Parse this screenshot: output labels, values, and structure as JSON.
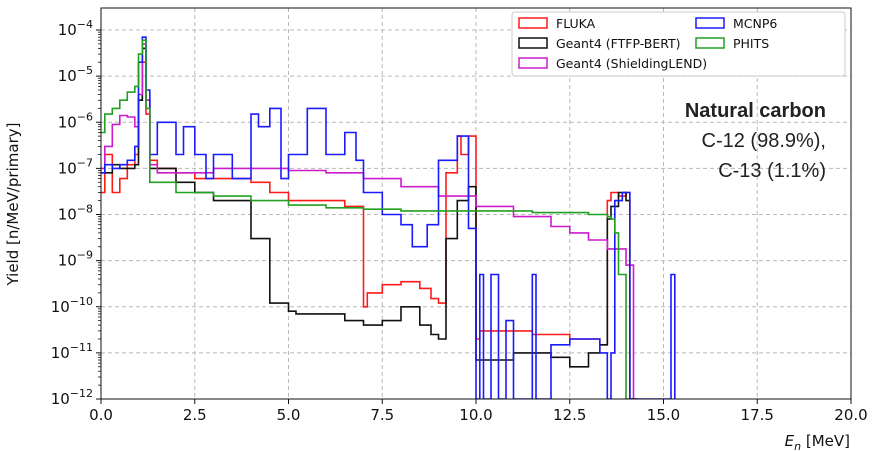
{
  "chart_data": {
    "type": "line",
    "step": true,
    "xlabel_main": "E",
    "xlabel_sub": "n",
    "xlabel_unit": " [MeV]",
    "ylabel": "Yield [n/MeV/primary]",
    "xlim": [
      0,
      20
    ],
    "ylim": [
      1e-12,
      0.0003
    ],
    "yscale": "log",
    "grid": true,
    "legend_placement": "top-right",
    "xticks": [
      "0.0",
      "2.5",
      "5.0",
      "7.5",
      "10.0",
      "12.5",
      "15.0",
      "17.5",
      "20.0"
    ],
    "yticks": [
      {
        "base": "10",
        "exp": "−12"
      },
      {
        "base": "10",
        "exp": "−11"
      },
      {
        "base": "10",
        "exp": "−10"
      },
      {
        "base": "10",
        "exp": "−9"
      },
      {
        "base": "10",
        "exp": "−8"
      },
      {
        "base": "10",
        "exp": "−7"
      },
      {
        "base": "10",
        "exp": "−6"
      },
      {
        "base": "10",
        "exp": "−5"
      },
      {
        "base": "10",
        "exp": "−4"
      }
    ],
    "annotation": {
      "title": "Natural carbon",
      "line1": "C-12 (98.9%),",
      "line2": "C-13 (1.1%)"
    },
    "series": [
      {
        "name": "FLUKA",
        "color": "#ff1a1a",
        "x": [
          0.0,
          0.1,
          0.3,
          0.5,
          0.7,
          0.9,
          1.0,
          1.1,
          1.2,
          1.3,
          1.5,
          2.0,
          2.5,
          3.0,
          4.0,
          4.5,
          5.0,
          6.0,
          6.5,
          7.0,
          7.1,
          7.5,
          8.0,
          8.5,
          8.8,
          9.0,
          9.2,
          9.5,
          9.6,
          9.8,
          10.0,
          10.1,
          10.5,
          11.0,
          11.5,
          12.0,
          12.5,
          13.0,
          13.3,
          13.5,
          13.6,
          13.8,
          14.0,
          14.1,
          14.3
        ],
        "y": [
          3e-08,
          2e-07,
          3e-08,
          6e-08,
          1.2e-07,
          2e-07,
          3e-06,
          2e-05,
          1.5e-06,
          1.5e-07,
          1e-07,
          8e-08,
          6e-08,
          6e-08,
          5e-08,
          3e-08,
          2e-08,
          2e-08,
          1.5e-08,
          1e-10,
          2e-10,
          3e-10,
          3.5e-10,
          2.5e-10,
          1.5e-10,
          1.2e-10,
          8e-08,
          5e-07,
          2e-07,
          5e-07,
          2e-11,
          3e-11,
          3e-11,
          3e-11,
          2.5e-11,
          2.5e-11,
          2e-11,
          2e-11,
          1.5e-11,
          2e-08,
          3e-08,
          2.5e-08,
          3e-08,
          1e-12,
          1e-12
        ]
      },
      {
        "name": "Geant4 (FTFP-BERT)",
        "color": "#111111",
        "x": [
          0.0,
          0.1,
          0.3,
          0.5,
          0.7,
          0.9,
          1.0,
          1.1,
          1.2,
          1.3,
          1.5,
          2.0,
          2.5,
          3.0,
          3.2,
          4.0,
          4.5,
          5.0,
          5.2,
          6.0,
          6.5,
          7.0,
          7.5,
          8.0,
          8.5,
          8.8,
          9.0,
          9.2,
          9.5,
          9.8,
          10.0,
          10.5,
          11.0,
          11.5,
          12.0,
          12.5,
          13.0,
          13.3,
          13.5,
          13.6,
          13.8,
          14.0,
          14.1,
          14.3
        ],
        "y": [
          8e-08,
          8e-08,
          1.2e-07,
          1e-07,
          1e-07,
          1.2e-07,
          3e-06,
          4e-05,
          3e-06,
          1e-07,
          1e-07,
          5e-08,
          3e-08,
          2e-08,
          2e-08,
          3e-09,
          1.2e-10,
          8e-11,
          7e-11,
          7e-11,
          5e-11,
          4e-11,
          5e-11,
          1e-10,
          4e-11,
          2.5e-11,
          2e-11,
          3e-09,
          2e-08,
          4e-08,
          7e-12,
          7e-12,
          1e-11,
          1e-11,
          8e-12,
          5e-12,
          1e-11,
          1.5e-11,
          8e-09,
          1.5e-08,
          3e-08,
          2e-08,
          1e-12,
          1e-12
        ]
      },
      {
        "name": "Geant4 (ShieldingLEND)",
        "color": "#cc1ccc",
        "x": [
          0.0,
          0.1,
          0.3,
          0.5,
          0.7,
          0.9,
          1.0,
          1.1,
          1.2,
          1.3,
          1.5,
          2.0,
          3.0,
          4.0,
          5.0,
          6.0,
          7.0,
          8.0,
          9.0,
          10.0,
          11.0,
          12.0,
          12.5,
          13.0,
          13.5,
          14.0,
          14.2,
          14.3
        ],
        "y": [
          1e-07,
          3e-07,
          9e-07,
          1.4e-06,
          1.3e-06,
          8e-07,
          4e-06,
          5e-05,
          3e-06,
          1.2e-07,
          8e-08,
          8e-08,
          1e-07,
          1e-07,
          9e-08,
          8e-08,
          6e-08,
          4e-08,
          2.5e-08,
          1.5e-08,
          9e-09,
          5.5e-09,
          4e-09,
          2.8e-09,
          1.8e-09,
          8e-10,
          1e-12,
          1e-12
        ]
      },
      {
        "name": "MCNP6",
        "color": "#1a1aff",
        "x": [
          0.0,
          0.1,
          0.3,
          0.5,
          0.7,
          0.9,
          1.0,
          1.1,
          1.2,
          1.3,
          1.5,
          2.0,
          2.2,
          2.5,
          2.8,
          3.0,
          3.5,
          4.0,
          4.2,
          4.5,
          4.8,
          5.0,
          5.5,
          6.0,
          6.5,
          6.8,
          7.0,
          7.5,
          8.0,
          8.3,
          8.7,
          9.0,
          9.5,
          9.8,
          10.0,
          10.1,
          10.2,
          10.4,
          10.6,
          10.8,
          11.0,
          11.5,
          11.6,
          12.0,
          12.5,
          13.0,
          13.3,
          13.5,
          13.6,
          13.7,
          13.9,
          14.0,
          14.1,
          14.2,
          15.1,
          15.2,
          15.3
        ],
        "y": [
          8e-08,
          1.2e-07,
          1e-07,
          1.2e-07,
          1.5e-07,
          3e-07,
          2e-05,
          7e-05,
          5e-06,
          2e-07,
          1e-06,
          2e-07,
          8e-07,
          2e-07,
          6e-08,
          2e-07,
          6e-08,
          1.5e-06,
          8e-07,
          2e-06,
          6e-08,
          2e-07,
          2e-06,
          2e-07,
          6e-07,
          1.5e-07,
          3e-08,
          1e-08,
          6e-09,
          2e-09,
          6e-09,
          1.5e-07,
          5e-07,
          5e-09,
          1e-12,
          5e-10,
          1e-12,
          5e-10,
          1e-12,
          5e-11,
          1e-12,
          5e-10,
          1e-12,
          1.5e-11,
          2e-11,
          2e-11,
          1e-11,
          1e-12,
          1e-11,
          2e-08,
          3e-08,
          3e-08,
          1e-12,
          1e-12,
          1e-12,
          5e-10,
          1e-12
        ]
      },
      {
        "name": "PHITS",
        "color": "#22a022",
        "x": [
          0.0,
          0.1,
          0.3,
          0.5,
          0.7,
          0.9,
          1.0,
          1.1,
          1.2,
          1.3,
          2.0,
          3.0,
          4.0,
          5.0,
          6.0,
          7.0,
          8.0,
          9.0,
          10.0,
          11.0,
          11.5,
          12.0,
          12.5,
          13.0,
          13.5,
          13.6,
          13.7,
          13.8,
          14.0,
          14.1
        ],
        "y": [
          6e-07,
          1.5e-06,
          2e-06,
          3e-06,
          4.5e-06,
          6e-06,
          3e-05,
          6e-05,
          2e-06,
          5e-08,
          3e-08,
          2.5e-08,
          2e-08,
          1.6e-08,
          1.4e-08,
          1.3e-08,
          1.2e-08,
          1.2e-08,
          1.2e-08,
          1.2e-08,
          1.1e-08,
          1.1e-08,
          1.1e-08,
          1e-08,
          9e-09,
          8e-09,
          4e-09,
          5e-10,
          1e-12,
          1e-12
        ]
      }
    ]
  }
}
